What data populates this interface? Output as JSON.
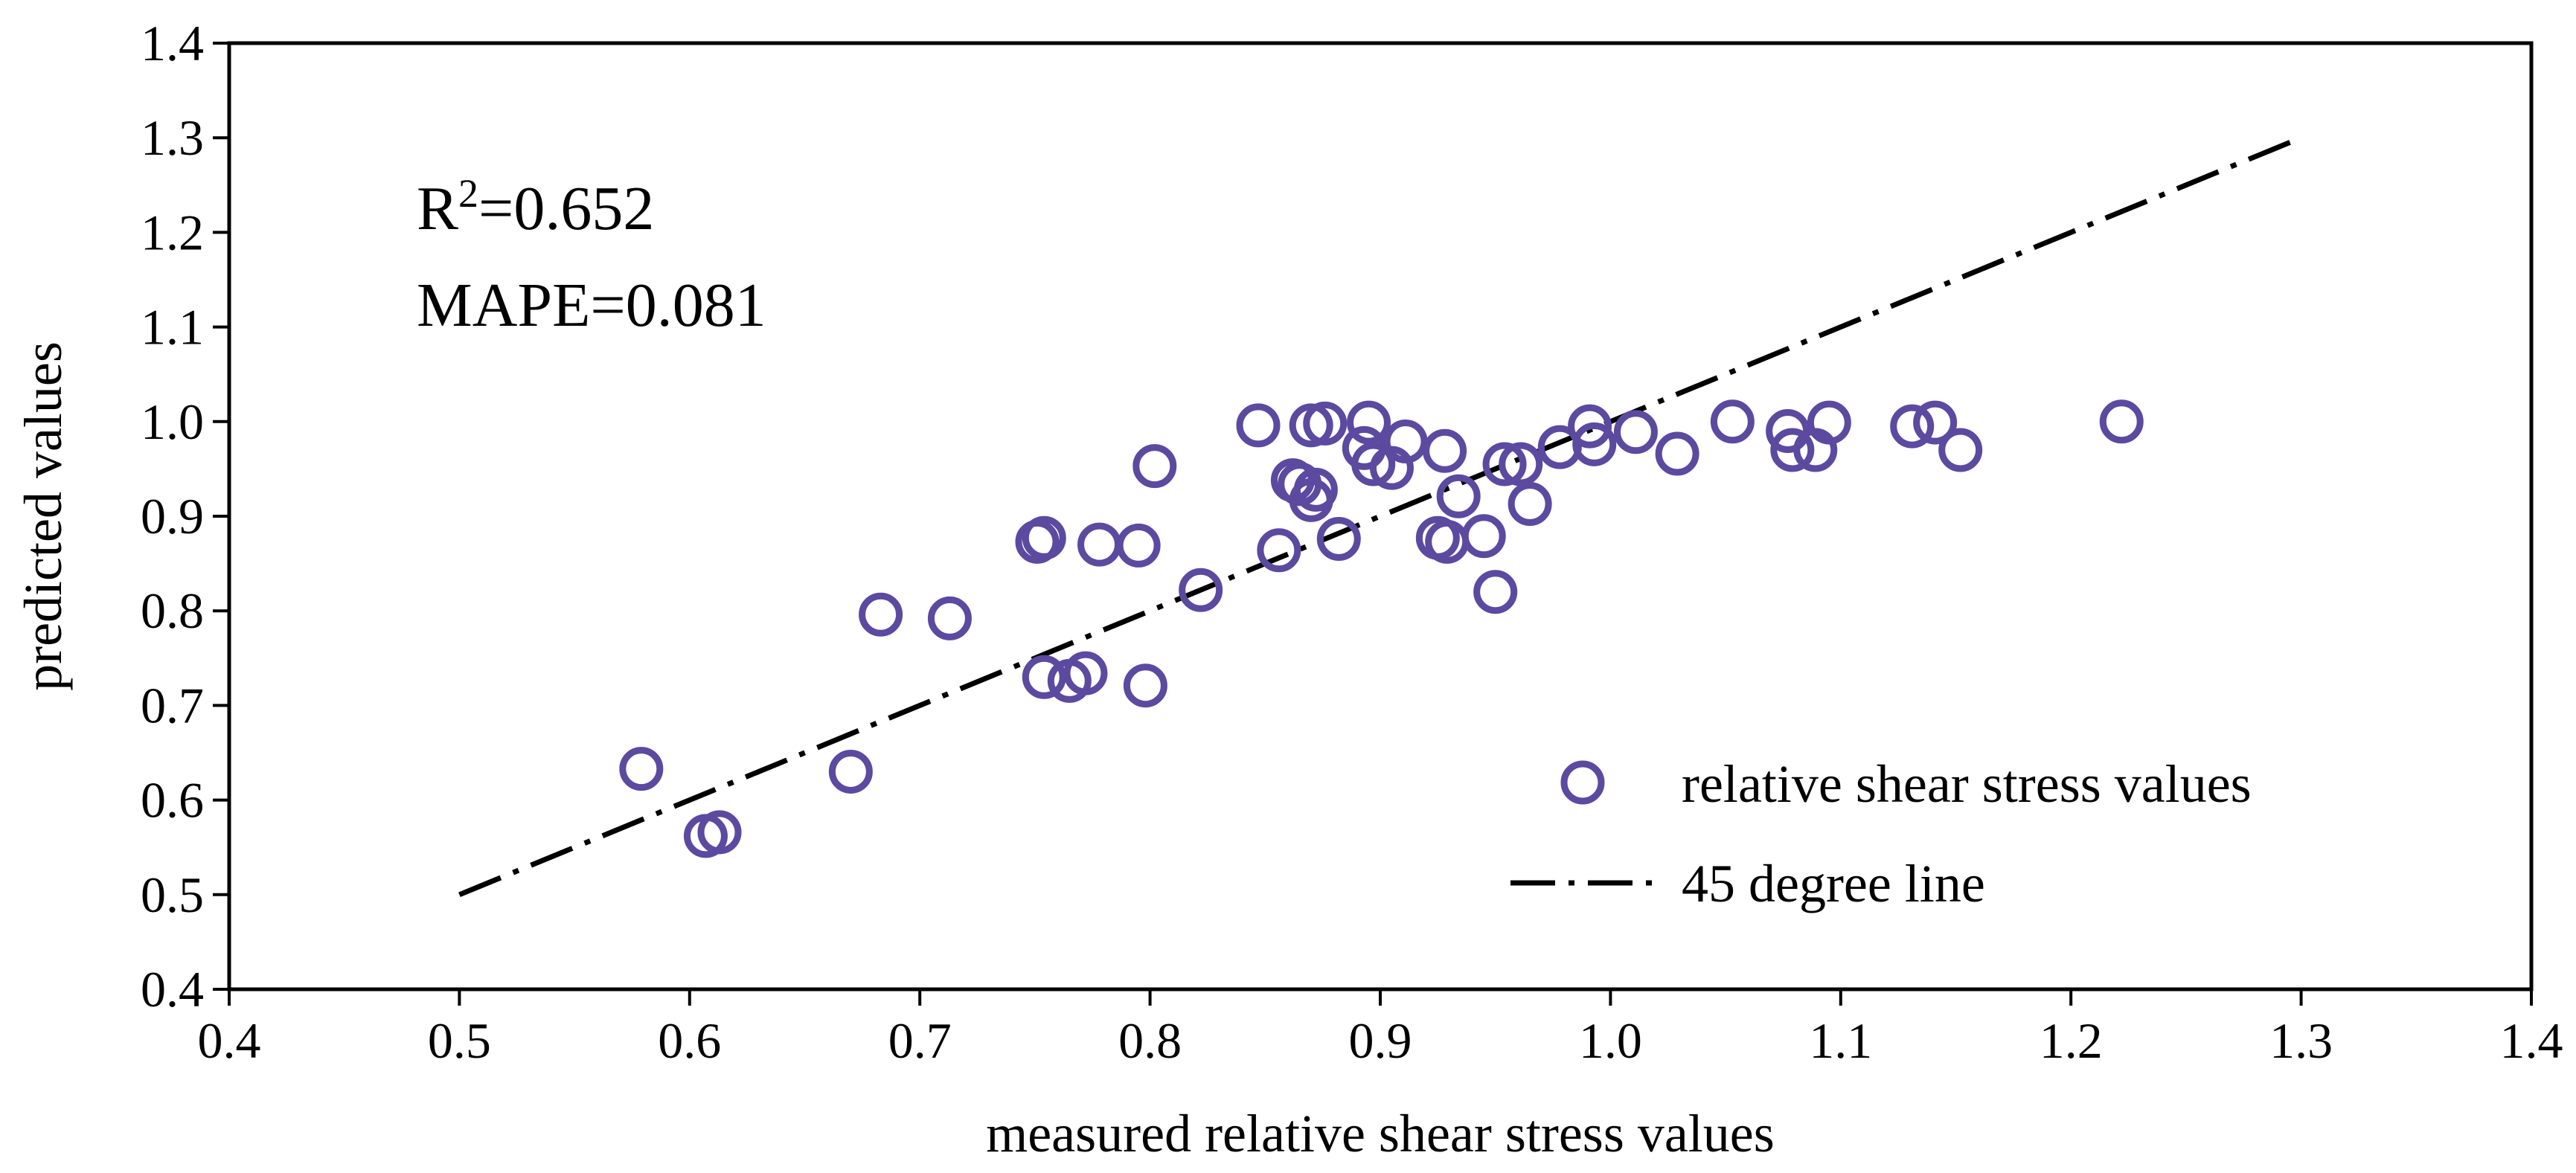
{
  "chart_data": {
    "type": "scatter",
    "xlabel": "measured relative shear stress values",
    "ylabel": "predicted  values",
    "xlim": [
      0.4,
      1.4
    ],
    "ylim": [
      0.4,
      1.4
    ],
    "x_ticks": [
      "0.4",
      "0.5",
      "0.6",
      "0.7",
      "0.8",
      "0.9",
      "1.0",
      "1.1",
      "1.2",
      "1.3",
      "1.4"
    ],
    "y_ticks": [
      "0.4",
      "0.5",
      "0.6",
      "0.7",
      "0.8",
      "0.9",
      "1.0",
      "1.1",
      "1.2",
      "1.3",
      "1.4"
    ],
    "grid": false,
    "legend_position": "bottom-right",
    "annotations": {
      "r2_base": "R",
      "r2_sup": "2",
      "r2_value": "=0.652",
      "mape": "MAPE=0.081"
    },
    "series": [
      {
        "name": "relative shear stress values",
        "kind": "scatter",
        "marker": "open-circle",
        "color": "#5b4aa0",
        "points": [
          [
            0.579,
            0.633
          ],
          [
            0.607,
            0.562
          ],
          [
            0.613,
            0.566
          ],
          [
            0.67,
            0.63
          ],
          [
            0.683,
            0.796
          ],
          [
            0.713,
            0.792
          ],
          [
            0.751,
            0.873
          ],
          [
            0.754,
            0.877
          ],
          [
            0.754,
            0.73
          ],
          [
            0.765,
            0.726
          ],
          [
            0.772,
            0.734
          ],
          [
            0.778,
            0.87
          ],
          [
            0.795,
            0.869
          ],
          [
            0.798,
            0.721
          ],
          [
            0.802,
            0.953
          ],
          [
            0.822,
            0.822
          ],
          [
            0.847,
            0.996
          ],
          [
            0.856,
            0.864
          ],
          [
            0.862,
            0.938
          ],
          [
            0.865,
            0.934
          ],
          [
            0.87,
            0.996
          ],
          [
            0.87,
            0.917
          ],
          [
            0.872,
            0.928
          ],
          [
            0.876,
            0.998
          ],
          [
            0.882,
            0.876
          ],
          [
            0.893,
            0.972
          ],
          [
            0.895,
            0.999
          ],
          [
            0.897,
            0.955
          ],
          [
            0.905,
            0.951
          ],
          [
            0.911,
            0.979
          ],
          [
            0.925,
            0.877
          ],
          [
            0.928,
            0.969
          ],
          [
            0.929,
            0.873
          ],
          [
            0.934,
            0.921
          ],
          [
            0.945,
            0.879
          ],
          [
            0.95,
            0.82
          ],
          [
            0.954,
            0.955
          ],
          [
            0.961,
            0.955
          ],
          [
            0.965,
            0.913
          ],
          [
            0.978,
            0.973
          ],
          [
            0.991,
            0.995
          ],
          [
            0.993,
            0.976
          ],
          [
            1.011,
            0.989
          ],
          [
            1.029,
            0.966
          ],
          [
            1.053,
            1.0
          ],
          [
            1.077,
            0.99
          ],
          [
            1.079,
            0.97
          ],
          [
            1.089,
            0.97
          ],
          [
            1.095,
            0.999
          ],
          [
            1.131,
            0.995
          ],
          [
            1.141,
            0.999
          ],
          [
            1.152,
            0.97
          ],
          [
            1.222,
            1.0
          ]
        ]
      },
      {
        "name": "45 degree line",
        "kind": "line",
        "style": "dash-dot",
        "color": "#000000",
        "x": [
          0.5,
          1.3
        ],
        "y": [
          0.5,
          1.3
        ]
      }
    ]
  }
}
